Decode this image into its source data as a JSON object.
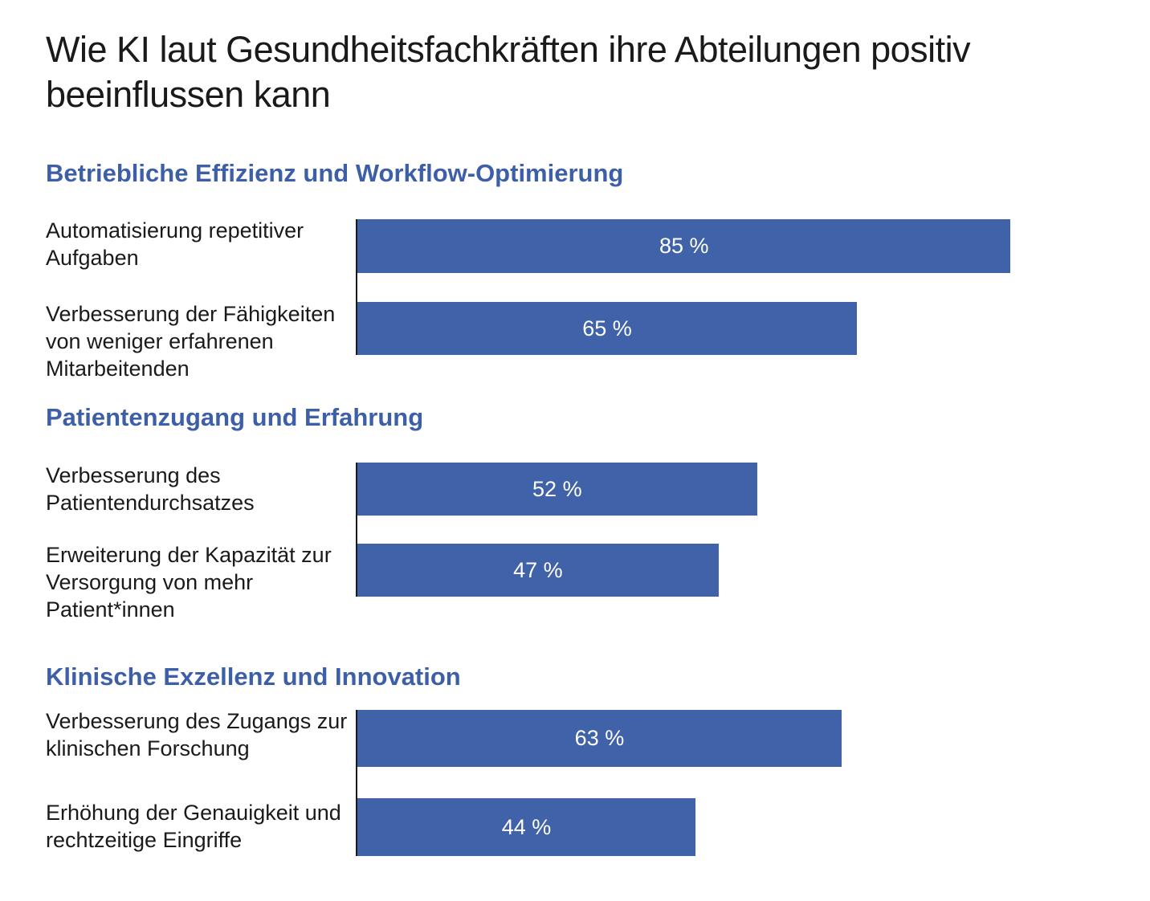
{
  "chart_data": {
    "type": "bar",
    "orientation": "horizontal",
    "title": "Wie KI laut Gesundheitsfachkräften ihre Abteilungen positiv beeinflussen kann",
    "unit": "%",
    "xlim": [
      0,
      100
    ],
    "groups": [
      {
        "name": "Betriebliche Effizienz und Workflow-Optimierung",
        "items": [
          {
            "category": "Automatisierung repetitiver Aufgaben",
            "value": 85,
            "label": "85 %"
          },
          {
            "category": "Verbesserung der Fähigkeiten von weniger erfahrenen Mitarbeitenden",
            "value": 65,
            "label": "65 %"
          }
        ]
      },
      {
        "name": "Patientenzugang und Erfahrung",
        "items": [
          {
            "category": "Verbesserung des Patientendurchsatzes",
            "value": 52,
            "label": "52 %"
          },
          {
            "category": "Erweiterung der Kapazität zur Versorgung von mehr Patient*innen",
            "value": 47,
            "label": "47 %"
          }
        ]
      },
      {
        "name": "Klinische Exzellenz und Innovation",
        "items": [
          {
            "category": "Verbesserung des Zugangs zur klinischen Forschung",
            "value": 63,
            "label": "63 %"
          },
          {
            "category": "Erhöhung der Genauigkeit und rechtzeitige Eingriffe",
            "value": 44,
            "label": "44 %"
          }
        ]
      }
    ],
    "colors": {
      "bar": "#4062a8",
      "group_title": "#3d5fa8",
      "bar_text": "#ffffff"
    }
  }
}
